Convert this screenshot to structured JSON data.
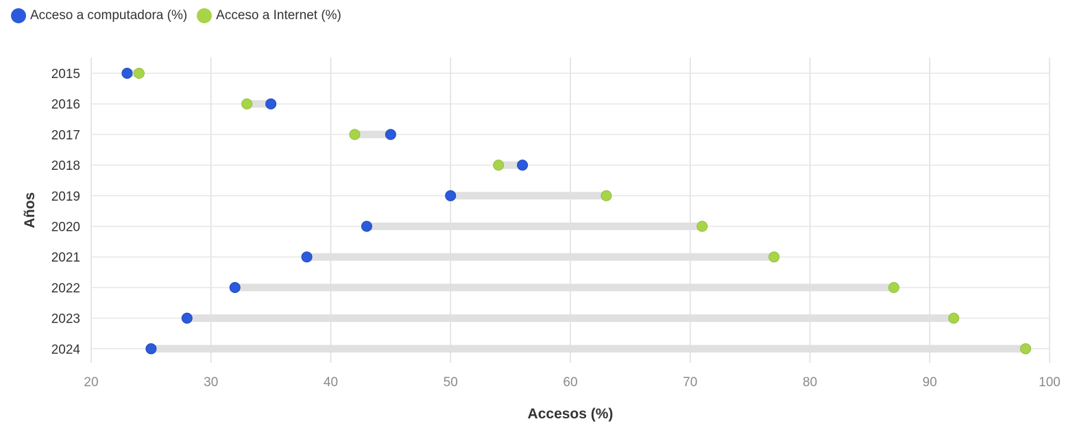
{
  "chart_data": {
    "type": "dumbbell",
    "categories": [
      "2015",
      "2016",
      "2017",
      "2018",
      "2019",
      "2020",
      "2021",
      "2022",
      "2023",
      "2024"
    ],
    "series": [
      {
        "name": "Acceso a computadora (%)",
        "color": "#2b5bdc",
        "values": [
          23,
          35,
          45,
          56,
          50,
          43,
          38,
          32,
          28,
          25
        ]
      },
      {
        "name": "Acceso a Internet (%)",
        "color": "#a8d44a",
        "values": [
          24,
          33,
          42,
          54,
          63,
          71,
          77,
          87,
          92,
          98
        ]
      }
    ],
    "xlabel": "Accesos (%)",
    "ylabel": "Años",
    "xlim": [
      20,
      100
    ],
    "xticks": [
      "20",
      "30",
      "40",
      "50",
      "60",
      "70",
      "80",
      "90",
      "100"
    ],
    "grid": true,
    "legend_position": "top-left",
    "connector_color": "#e0e0e0"
  }
}
